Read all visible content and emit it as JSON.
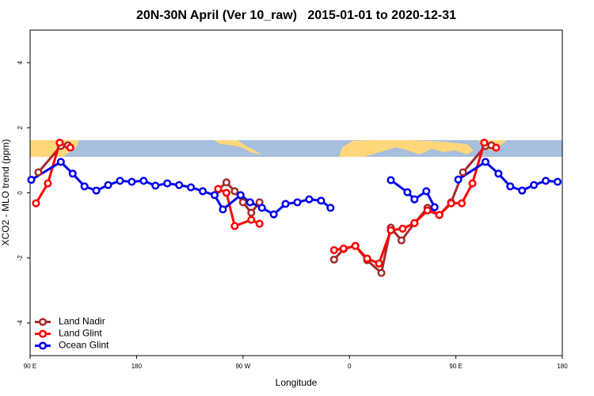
{
  "chart_data": {
    "type": "line",
    "title": "20N-30N April (Ver 10_raw)   2015-01-01 to 2020-12-31",
    "xlabel": "Longitude",
    "ylabel": "XCO2 - MLO trend (ppm)",
    "xlim": [
      90,
      540
    ],
    "ylim": [
      -5,
      5
    ],
    "xticks": [
      {
        "value": 90,
        "label": "90 E"
      },
      {
        "value": 180,
        "label": "180"
      },
      {
        "value": 270,
        "label": "90 W"
      },
      {
        "value": 360,
        "label": "0"
      },
      {
        "value": 450,
        "label": "90 E"
      },
      {
        "value": 540,
        "label": "180"
      }
    ],
    "yticks": [
      -4,
      -2,
      0,
      2,
      4
    ],
    "legend": "bottomleft",
    "series": [
      {
        "name": "Land Nadir",
        "color": "#a52a2a",
        "x": [
          97,
          116,
          122,
          185,
          249,
          256,
          263,
          270,
          277,
          284,
          315,
          347,
          355,
          365,
          375,
          387,
          395,
          404,
          415,
          426,
          436,
          446,
          456,
          475,
          480
        ],
        "values": [
          0.63,
          1.44,
          1.46,
          null,
          0.1,
          0.32,
          0.05,
          -0.29,
          -0.61,
          -0.29,
          null,
          -2.05,
          -1.73,
          -1.63,
          -2.07,
          -2.46,
          -1.07,
          -1.46,
          -0.93,
          -0.46,
          -0.68,
          -0.29,
          0.63,
          1.44,
          1.46
        ]
      },
      {
        "name": "Land Glint",
        "color": "#ff0000",
        "x": [
          95,
          105,
          115,
          124,
          185,
          249,
          256,
          263,
          277,
          284,
          315,
          347,
          355,
          365,
          375,
          385,
          395,
          405,
          415,
          426,
          436,
          446,
          455,
          464,
          474,
          484
        ],
        "values": [
          -0.32,
          0.29,
          1.54,
          1.39,
          null,
          0.12,
          0,
          -1.02,
          -0.83,
          -0.95,
          null,
          -1.76,
          -1.71,
          -1.63,
          -2.02,
          -2.17,
          -1.15,
          -1.1,
          -0.93,
          -0.54,
          -0.68,
          -0.32,
          -0.32,
          0.29,
          1.54,
          1.39
        ]
      },
      {
        "name": "Ocean Glint",
        "color": "#0000ee",
        "x": [
          91,
          116,
          126,
          136,
          146,
          156,
          166,
          176,
          186,
          196,
          206,
          216,
          226,
          236,
          246,
          253,
          268,
          276,
          286,
          296,
          306,
          316,
          326,
          336,
          344,
          370,
          395,
          409,
          415,
          425,
          432,
          442,
          452,
          475,
          486,
          496,
          506,
          516,
          526,
          536
        ],
        "values": [
          0.4,
          0.95,
          0.59,
          0.2,
          0.07,
          0.24,
          0.37,
          0.34,
          0.37,
          0.22,
          0.29,
          0.24,
          0.17,
          0.05,
          -0.07,
          -0.51,
          -0.07,
          -0.29,
          -0.46,
          -0.66,
          -0.34,
          -0.29,
          -0.2,
          -0.24,
          -0.46,
          null,
          0.39,
          0.02,
          -0.2,
          0.05,
          -0.44,
          null,
          0.41,
          0.95,
          0.59,
          0.2,
          0.07,
          0.24,
          0.37,
          0.34
        ]
      }
    ]
  }
}
